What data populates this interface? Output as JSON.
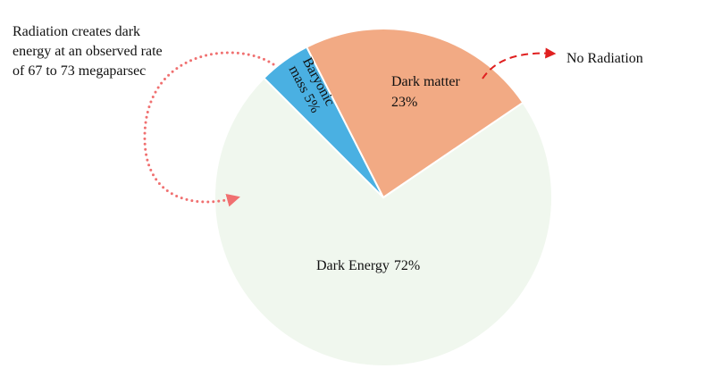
{
  "chart_data": {
    "type": "pie",
    "categories": [
      "Baryonic mass",
      "Dark matter",
      "Dark Energy"
    ],
    "values": [
      5,
      23,
      72
    ],
    "value_labels": [
      "5%",
      "23%",
      "72%"
    ],
    "colors": [
      "#4ab0e2",
      "#f2aa84",
      "#f0f7ee"
    ],
    "annotations": [
      [
        "Radiation creates dark",
        "energy at an observed rate",
        "of 67 to 73 megaparsec"
      ],
      [
        "No Radiation"
      ]
    ]
  }
}
